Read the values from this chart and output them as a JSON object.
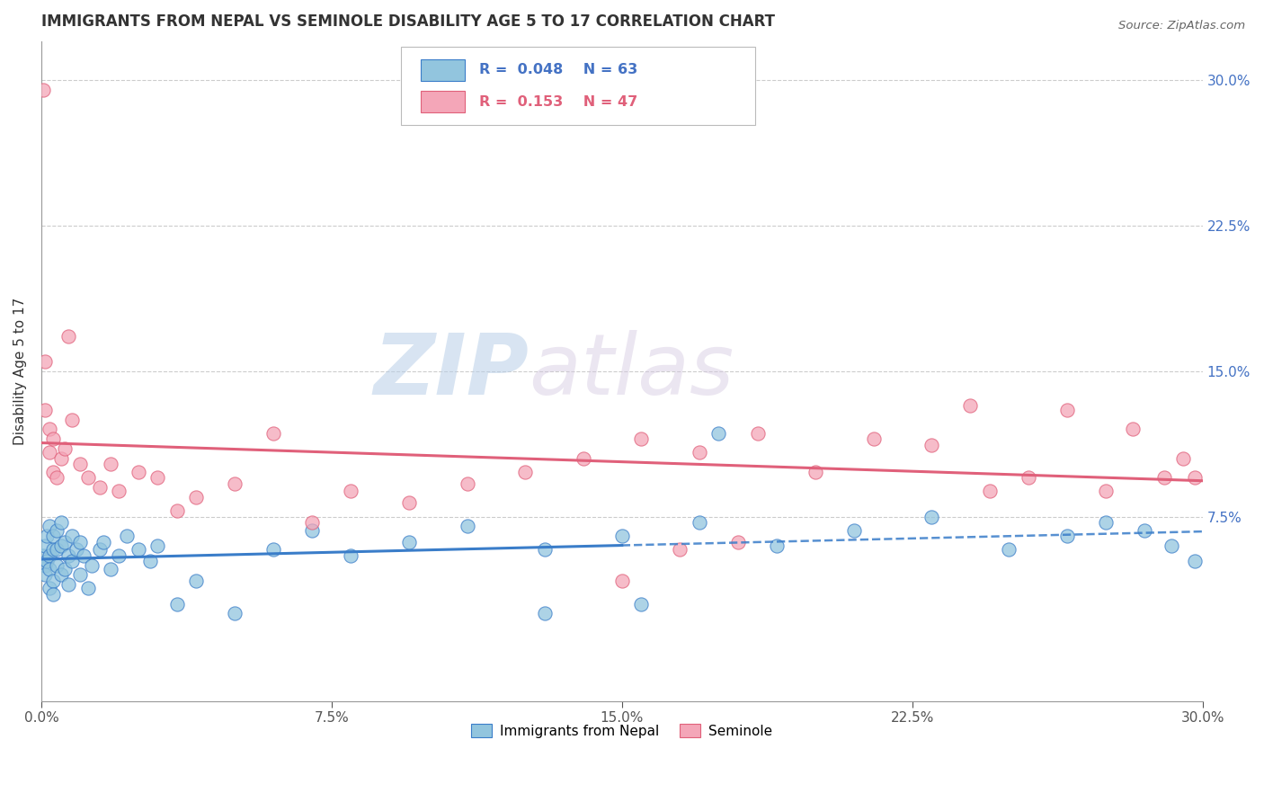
{
  "title": "IMMIGRANTS FROM NEPAL VS SEMINOLE DISABILITY AGE 5 TO 17 CORRELATION CHART",
  "source": "Source: ZipAtlas.com",
  "ylabel": "Disability Age 5 to 17",
  "legend_label_1": "Immigrants from Nepal",
  "legend_label_2": "Seminole",
  "R1": 0.048,
  "N1": 63,
  "R2": 0.153,
  "N2": 47,
  "color_blue": "#92c5de",
  "color_pink": "#f4a6b8",
  "color_blue_line": "#3a7dc9",
  "color_pink_line": "#e0607a",
  "right_yticks": [
    "7.5%",
    "15.0%",
    "22.5%",
    "30.0%"
  ],
  "right_ytick_vals": [
    0.075,
    0.15,
    0.225,
    0.3
  ],
  "watermark_zip": "ZIP",
  "watermark_atlas": "atlas",
  "xlim": [
    0.0,
    0.3
  ],
  "ylim": [
    -0.02,
    0.32
  ],
  "blue_scatter_x": [
    0.0005,
    0.001,
    0.001,
    0.001,
    0.0015,
    0.0015,
    0.002,
    0.002,
    0.002,
    0.002,
    0.003,
    0.003,
    0.003,
    0.003,
    0.004,
    0.004,
    0.004,
    0.005,
    0.005,
    0.005,
    0.006,
    0.006,
    0.007,
    0.007,
    0.008,
    0.008,
    0.009,
    0.01,
    0.01,
    0.011,
    0.012,
    0.013,
    0.015,
    0.016,
    0.018,
    0.02,
    0.022,
    0.025,
    0.028,
    0.03,
    0.035,
    0.04,
    0.05,
    0.06,
    0.07,
    0.08,
    0.095,
    0.11,
    0.13,
    0.15,
    0.17,
    0.19,
    0.21,
    0.23,
    0.25,
    0.265,
    0.275,
    0.285,
    0.292,
    0.298,
    0.13,
    0.155,
    0.175
  ],
  "blue_scatter_y": [
    0.055,
    0.06,
    0.05,
    0.045,
    0.052,
    0.065,
    0.038,
    0.055,
    0.07,
    0.048,
    0.042,
    0.058,
    0.035,
    0.065,
    0.05,
    0.058,
    0.068,
    0.045,
    0.06,
    0.072,
    0.048,
    0.062,
    0.055,
    0.04,
    0.052,
    0.065,
    0.058,
    0.045,
    0.062,
    0.055,
    0.038,
    0.05,
    0.058,
    0.062,
    0.048,
    0.055,
    0.065,
    0.058,
    0.052,
    0.06,
    0.03,
    0.042,
    0.025,
    0.058,
    0.068,
    0.055,
    0.062,
    0.07,
    0.058,
    0.065,
    0.072,
    0.06,
    0.068,
    0.075,
    0.058,
    0.065,
    0.072,
    0.068,
    0.06,
    0.052,
    0.025,
    0.03,
    0.118
  ],
  "pink_scatter_x": [
    0.0005,
    0.001,
    0.001,
    0.002,
    0.002,
    0.003,
    0.003,
    0.004,
    0.005,
    0.006,
    0.007,
    0.008,
    0.01,
    0.012,
    0.015,
    0.018,
    0.02,
    0.025,
    0.03,
    0.035,
    0.04,
    0.05,
    0.06,
    0.07,
    0.08,
    0.095,
    0.11,
    0.125,
    0.14,
    0.155,
    0.17,
    0.185,
    0.2,
    0.215,
    0.23,
    0.245,
    0.255,
    0.265,
    0.275,
    0.282,
    0.29,
    0.295,
    0.298,
    0.15,
    0.165,
    0.18,
    0.24
  ],
  "pink_scatter_y": [
    0.295,
    0.13,
    0.155,
    0.108,
    0.12,
    0.098,
    0.115,
    0.095,
    0.105,
    0.11,
    0.168,
    0.125,
    0.102,
    0.095,
    0.09,
    0.102,
    0.088,
    0.098,
    0.095,
    0.078,
    0.085,
    0.092,
    0.118,
    0.072,
    0.088,
    0.082,
    0.092,
    0.098,
    0.105,
    0.115,
    0.108,
    0.118,
    0.098,
    0.115,
    0.112,
    0.088,
    0.095,
    0.13,
    0.088,
    0.12,
    0.095,
    0.105,
    0.095,
    0.042,
    0.058,
    0.062,
    0.132
  ]
}
